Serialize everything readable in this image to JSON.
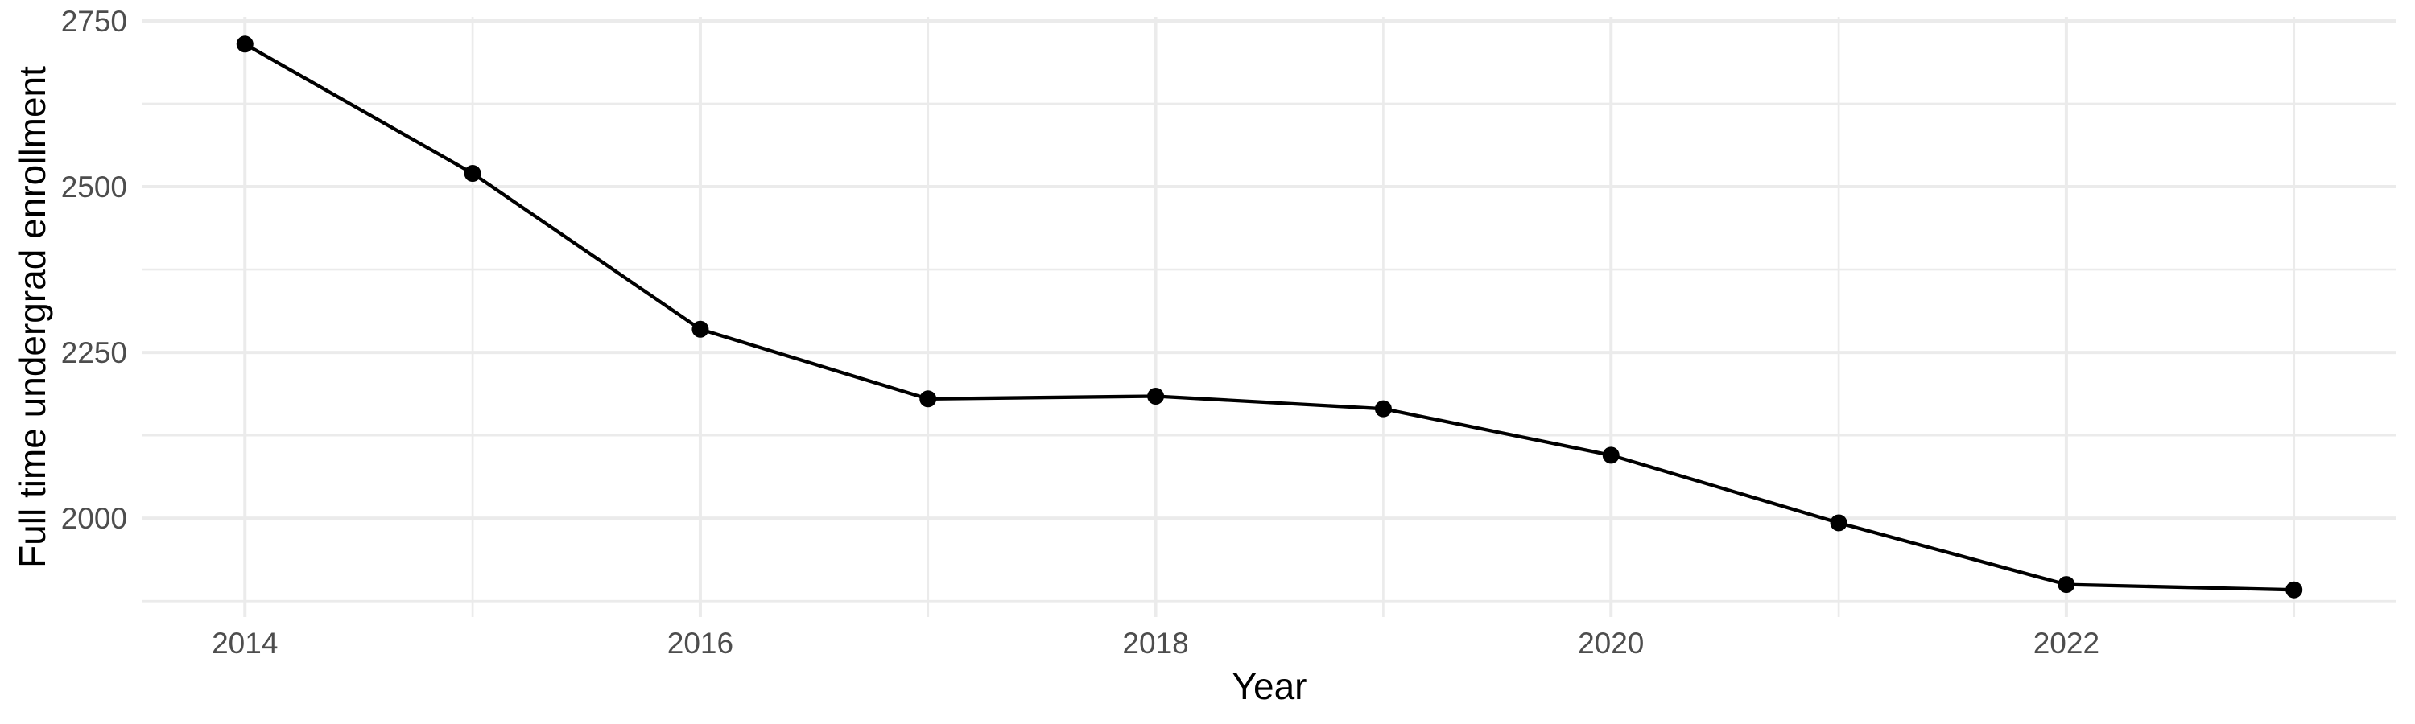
{
  "chart_data": {
    "type": "line",
    "title": "",
    "xlabel": "Year",
    "ylabel": "Full time undergrad enrollment",
    "x": [
      2014,
      2015,
      2016,
      2017,
      2018,
      2019,
      2020,
      2021,
      2022,
      2023
    ],
    "series": [
      {
        "name": "Full time undergrad enrollment",
        "values": [
          2715,
          2520,
          2285,
          2180,
          2184,
          2165,
          2095,
          1993,
          1900,
          1892
        ]
      }
    ],
    "xlim": [
      2013.55,
      2023.45
    ],
    "ylim": [
      1851,
      2756
    ],
    "x_ticks_major": [
      2014,
      2016,
      2018,
      2020,
      2022
    ],
    "x_ticks_minor": [
      2015,
      2017,
      2019,
      2021,
      2023
    ],
    "y_ticks_major": [
      2000,
      2250,
      2500,
      2750
    ],
    "y_ticks_minor": [
      1875,
      2125,
      2375,
      2625
    ],
    "grid": "major+minor",
    "legend": "none",
    "style": {
      "background": "#ffffff",
      "grid_color": "#ebebeb",
      "line_color": "#000000",
      "point_color": "#000000",
      "tick_label_color": "#4d4d4d",
      "axis_title_color": "#000000"
    }
  }
}
